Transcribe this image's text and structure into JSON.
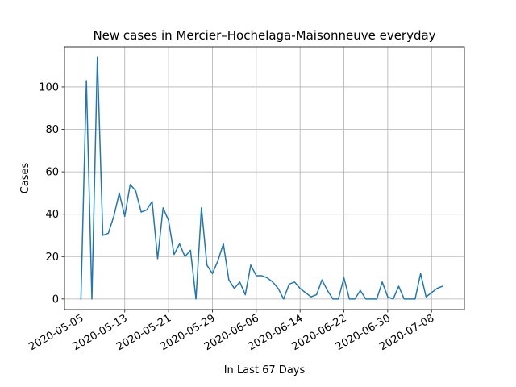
{
  "chart_data": {
    "type": "line",
    "title": "New cases in Mercier–Hochelaga-Maisonneuve everyday",
    "xlabel": "In Last 67 Days",
    "ylabel": "Cases",
    "grid": true,
    "legend": "none",
    "xlim": [
      "2020-05-02",
      "2020-07-14"
    ],
    "ylim": [
      -5,
      119
    ],
    "x_ticks": [
      "2020-05-05",
      "2020-05-13",
      "2020-05-21",
      "2020-05-29",
      "2020-06-06",
      "2020-06-14",
      "2020-06-22",
      "2020-06-30",
      "2020-07-08"
    ],
    "y_ticks": [
      0,
      20,
      40,
      60,
      80,
      100
    ],
    "line_color": "#1f77b4",
    "x_start": "2020-05-05",
    "series": [
      {
        "values": [
          0,
          103,
          0,
          114,
          30,
          31,
          39,
          50,
          39,
          54,
          51,
          41,
          42,
          46,
          19,
          43,
          37,
          21,
          26,
          20,
          23,
          0,
          43,
          16,
          12,
          18,
          26,
          9,
          5,
          8,
          2,
          16,
          11,
          11,
          10,
          8,
          5,
          0,
          7,
          8,
          5,
          3,
          1,
          2,
          9,
          4,
          0,
          0,
          10,
          0,
          0,
          4,
          0,
          0,
          0,
          8,
          1,
          0,
          6,
          0,
          0,
          0,
          12,
          1,
          3,
          5,
          6
        ]
      }
    ]
  }
}
